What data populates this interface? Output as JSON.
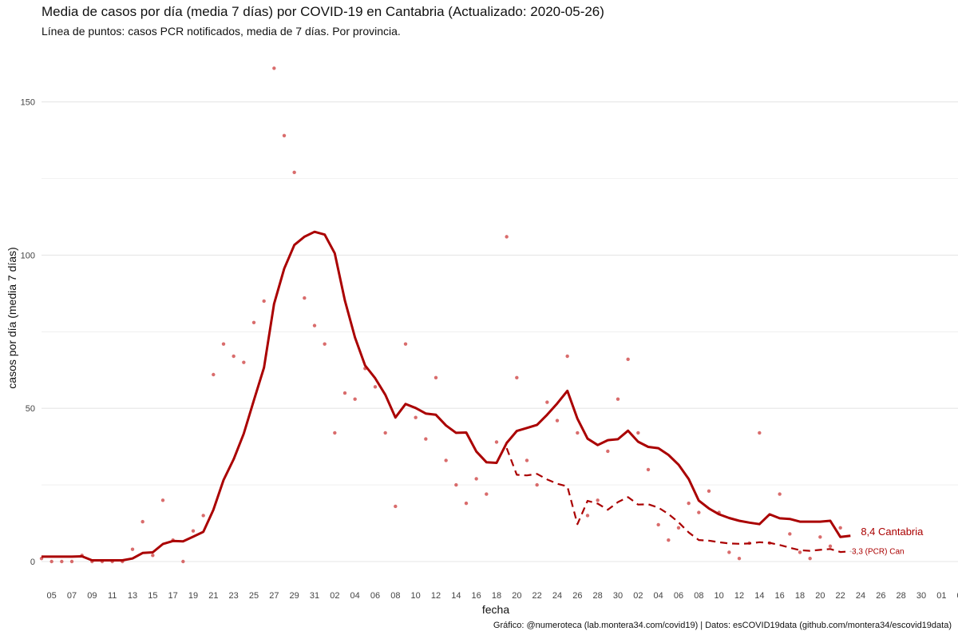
{
  "chart_data": {
    "type": "line",
    "title": "Media de casos por día (media 7 días) por COVID-19 en Cantabria (Actualizado: 2020-05-26)",
    "subtitle": "Línea de puntos: casos PCR notificados, media de 7 días. Por provincia.",
    "caption": "Gráfico: @numeroteca (lab.montera34.com/covid19) | Datos: esCOVID19data (github.com/montera34/escovid19data)",
    "xlabel": "fecha",
    "ylabel": "casos por día (media 7 días)",
    "ylim": [
      -8,
      162
    ],
    "yticks": [
      0,
      50,
      100,
      150
    ],
    "grid": true,
    "x_start": "2020-03-04",
    "x_tick_labels": [
      "05",
      "07",
      "09",
      "11",
      "13",
      "15",
      "17",
      "19",
      "21",
      "23",
      "25",
      "27",
      "29",
      "31",
      "02",
      "04",
      "06",
      "08",
      "10",
      "12",
      "14",
      "16",
      "18",
      "20",
      "22",
      "24",
      "26",
      "28",
      "30",
      "02",
      "04",
      "06",
      "08",
      "10",
      "12",
      "14",
      "16",
      "18",
      "20",
      "22",
      "24",
      "26",
      "28",
      "30",
      "01",
      "03"
    ],
    "colors": {
      "series": "#aa0000",
      "points": "#cc3b3b",
      "grid": "#e6e6e6"
    },
    "series": [
      {
        "name": "Cantabria",
        "label": "8,4 Cantabria",
        "style": "solid",
        "values": [
          1.6,
          1.6,
          1.6,
          1.6,
          1.7,
          0.4,
          0.4,
          0.4,
          0.4,
          1.0,
          2.8,
          3.0,
          5.7,
          6.7,
          6.6,
          8.1,
          9.7,
          16.9,
          26.6,
          33.4,
          41.7,
          52.6,
          63.3,
          84.1,
          95.6,
          103.3,
          106.0,
          107.6,
          106.7,
          100.6,
          85.2,
          73.1,
          64.0,
          59.8,
          54.4,
          47.0,
          51.4,
          50.1,
          48.3,
          47.9,
          44.4,
          42.0,
          42.1,
          35.9,
          32.4,
          32.2,
          38.7,
          42.6,
          43.6,
          44.6,
          47.9,
          51.6,
          55.7,
          46.6,
          40.1,
          38.0,
          39.6,
          39.9,
          42.7,
          39.1,
          37.4,
          37.0,
          34.8,
          31.6,
          26.9,
          19.9,
          17.3,
          15.4,
          14.2,
          13.3,
          12.7,
          12.2,
          15.4,
          14.1,
          13.9,
          13.0,
          13.0,
          13.0,
          13.3,
          8.0,
          8.4
        ]
      },
      {
        "name": "Cantabria (PCR)",
        "label": "3,3 (PCR) Can",
        "style": "dashed",
        "values": [
          null,
          null,
          null,
          null,
          null,
          null,
          null,
          null,
          null,
          null,
          null,
          null,
          null,
          null,
          null,
          null,
          null,
          null,
          null,
          null,
          null,
          null,
          null,
          null,
          null,
          null,
          null,
          null,
          null,
          null,
          null,
          null,
          null,
          null,
          null,
          null,
          null,
          null,
          null,
          null,
          null,
          null,
          null,
          null,
          null,
          null,
          37.0,
          28.3,
          28.1,
          28.6,
          26.8,
          25.4,
          24.5,
          12.2,
          19.8,
          18.9,
          16.9,
          19.4,
          21.0,
          18.6,
          18.7,
          17.6,
          15.5,
          12.8,
          9.5,
          7.0,
          6.8,
          6.3,
          5.9,
          5.8,
          5.9,
          6.3,
          6.1,
          5.4,
          4.5,
          3.7,
          3.5,
          3.8,
          4.1,
          3.1,
          3.3
        ]
      }
    ],
    "points": {
      "name": "casos diarios",
      "values": [
        1,
        0,
        0,
        0,
        2,
        0,
        0,
        0,
        0,
        4,
        13,
        2,
        20,
        7,
        0,
        10,
        15,
        61,
        71,
        67,
        65,
        78,
        85,
        161,
        139,
        127,
        86,
        77,
        71,
        42,
        55,
        53,
        63,
        57,
        42,
        18,
        71,
        47,
        40,
        60,
        33,
        25,
        19,
        27,
        22,
        39,
        106,
        60,
        33,
        25,
        52,
        46,
        67,
        42,
        15,
        20,
        36,
        53,
        66,
        42,
        30,
        12,
        7,
        11,
        19,
        16,
        23,
        16,
        3,
        1,
        6,
        42,
        6,
        22,
        9,
        3,
        1,
        8,
        5,
        11
      ]
    }
  }
}
